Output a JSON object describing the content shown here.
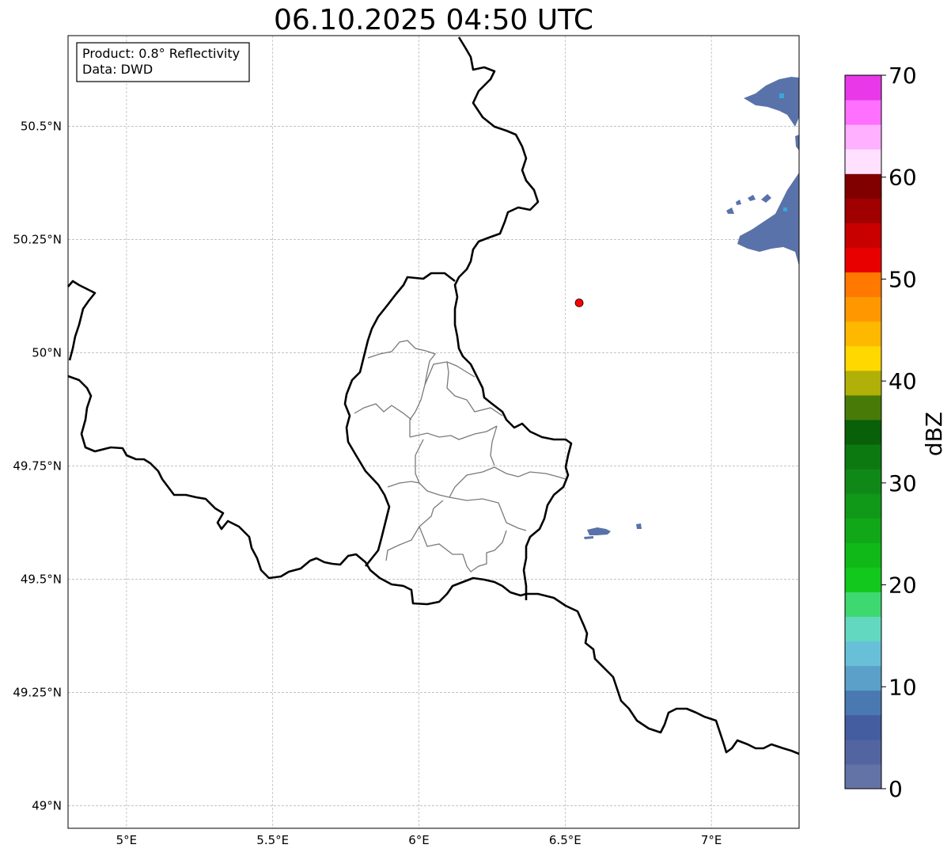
{
  "title": "06.10.2025 04:50 UTC",
  "info_box": {
    "product": "Product: 0.8° Reflectivity",
    "data": "Data: DWD"
  },
  "map": {
    "lon_range": [
      4.8,
      7.3
    ],
    "lat_range": [
      48.95,
      50.7
    ],
    "gridlines": true,
    "lon_ticks": [
      {
        "value": 5.0,
        "label": "5°E"
      },
      {
        "value": 5.5,
        "label": "5.5°E"
      },
      {
        "value": 6.0,
        "label": "6°E"
      },
      {
        "value": 6.5,
        "label": "6.5°E"
      },
      {
        "value": 7.0,
        "label": "7°E"
      }
    ],
    "lat_ticks": [
      {
        "value": 50.5,
        "label": "50.5°N"
      },
      {
        "value": 50.25,
        "label": "50.25°N"
      },
      {
        "value": 50.0,
        "label": "50°N"
      },
      {
        "value": 49.75,
        "label": "49.75°N"
      },
      {
        "value": 49.5,
        "label": "49.5°N"
      },
      {
        "value": 49.25,
        "label": "49.25°N"
      },
      {
        "value": 49.0,
        "label": "49°N"
      }
    ],
    "radar_site": {
      "lon": 6.548,
      "lat": 50.11,
      "color": "#ff0000"
    }
  },
  "colorbar": {
    "label": "dBZ",
    "range": [
      0,
      70
    ],
    "ticks": [
      "0",
      "10",
      "20",
      "30",
      "40",
      "50",
      "60",
      "70"
    ],
    "colors": [
      "#6473a6",
      "#5365a0",
      "#435da0",
      "#4a78b0",
      "#5aa0c8",
      "#68c0d8",
      "#62d8c0",
      "#3ed870",
      "#12c81c",
      "#10b818",
      "#10a818",
      "#109818",
      "#108818",
      "#0c7810",
      "#086008",
      "#487a08",
      "#b0b008",
      "#ffd800",
      "#ffb800",
      "#ff9800",
      "#ff7800",
      "#e80000",
      "#c80000",
      "#a00000",
      "#800000",
      "#ffe0ff",
      "#ffb0ff",
      "#ff70ff",
      "#e838e8"
    ]
  }
}
